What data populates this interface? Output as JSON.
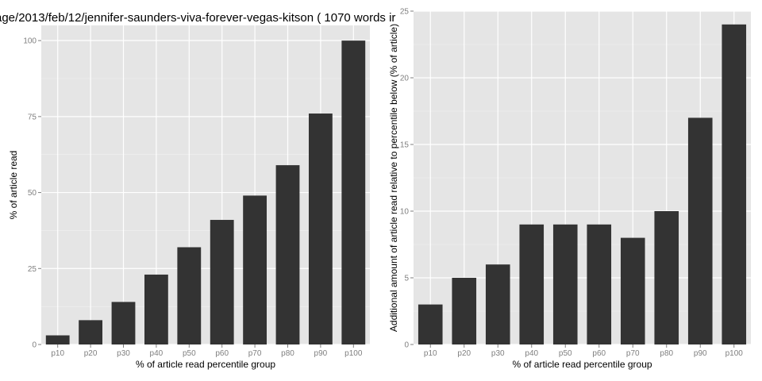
{
  "chart_data": [
    {
      "type": "bar",
      "title": "age/2013/feb/12/jennifer-saunders-viva-forever-vegas-kitson ( 1070 words ir",
      "xlabel": "% of article read percentile group",
      "ylabel": "% of article read",
      "categories": [
        "p10",
        "p20",
        "p30",
        "p40",
        "p50",
        "p60",
        "p70",
        "p80",
        "p90",
        "p100"
      ],
      "values": [
        3,
        8,
        14,
        23,
        32,
        41,
        49,
        59,
        76,
        100
      ],
      "ylim": [
        0,
        105
      ],
      "yticks": [
        "0",
        "25",
        "50",
        "75",
        "100"
      ],
      "grid": true,
      "bar_color": "#333333",
      "panel_color": "#e5e5e5"
    },
    {
      "type": "bar",
      "title": "",
      "xlabel": "% of article read percentile group",
      "ylabel": "Additional amount of article read relative to percentile below (% of article)",
      "categories": [
        "p10",
        "p20",
        "p30",
        "p40",
        "p50",
        "p60",
        "p70",
        "p80",
        "p90",
        "p100"
      ],
      "values": [
        3,
        5,
        6,
        9,
        9,
        9,
        8,
        10,
        17,
        24
      ],
      "ylim": [
        0,
        25
      ],
      "yticks": [
        "0",
        "5",
        "10",
        "15",
        "20",
        "25"
      ],
      "grid": true,
      "bar_color": "#333333",
      "panel_color": "#e5e5e5"
    }
  ]
}
